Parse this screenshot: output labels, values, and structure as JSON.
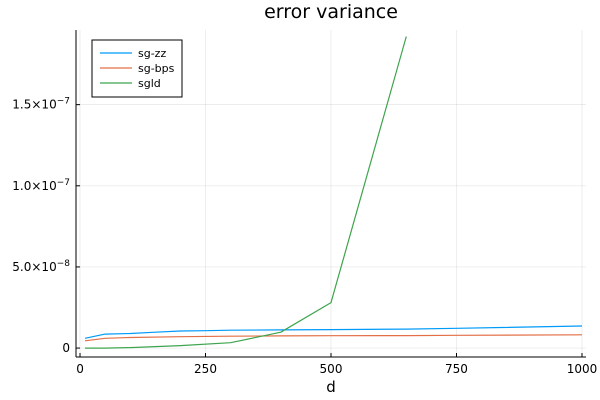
{
  "chart_data": {
    "type": "line",
    "title": "error variance",
    "xlabel": "d",
    "ylabel": "",
    "xlim": [
      -8,
      1008
    ],
    "ylim": [
      -5.5e-09,
      1.96e-07
    ],
    "grid": true,
    "legend_position": "top-left",
    "x_ticks": [
      {
        "value": 0,
        "label": "0"
      },
      {
        "value": 250,
        "label": "250"
      },
      {
        "value": 500,
        "label": "500"
      },
      {
        "value": 750,
        "label": "750"
      },
      {
        "value": 1000,
        "label": "1000"
      }
    ],
    "y_ticks": [
      {
        "value": 0,
        "label": "0"
      },
      {
        "value": 5e-08,
        "mantissa": "5.0×10",
        "exponent": "−8"
      },
      {
        "value": 1e-07,
        "mantissa": "1.0×10",
        "exponent": "−7"
      },
      {
        "value": 1.5e-07,
        "mantissa": "1.5×10",
        "exponent": "−7"
      }
    ],
    "series": [
      {
        "name": "sg-zz",
        "color": "#009af9",
        "x": [
          10,
          50,
          100,
          150,
          200,
          250,
          300,
          400,
          500,
          650,
          750,
          1000
        ],
        "y": [
          6e-09,
          8.6e-09,
          9e-09,
          9.8e-09,
          1.05e-08,
          1.07e-08,
          1.1e-08,
          1.12e-08,
          1.14e-08,
          1.17e-08,
          1.22e-08,
          1.36e-08
        ]
      },
      {
        "name": "sg-bps",
        "color": "#e26f46",
        "x": [
          10,
          50,
          100,
          200,
          300,
          400,
          500,
          650,
          750,
          1000
        ],
        "y": [
          4.5e-09,
          6e-09,
          6.5e-09,
          7e-09,
          7.3e-09,
          7.5e-09,
          7.6e-09,
          7.7e-09,
          7.9e-09,
          8.2e-09
        ]
      },
      {
        "name": "sgld",
        "color": "#3da44d",
        "x": [
          10,
          50,
          100,
          200,
          300,
          400,
          500,
          650
        ],
        "y": [
          0.0,
          0.0,
          3e-10,
          1.5e-09,
          3.3e-09,
          9.8e-09,
          2.8e-08,
          1.92e-07
        ]
      }
    ]
  }
}
